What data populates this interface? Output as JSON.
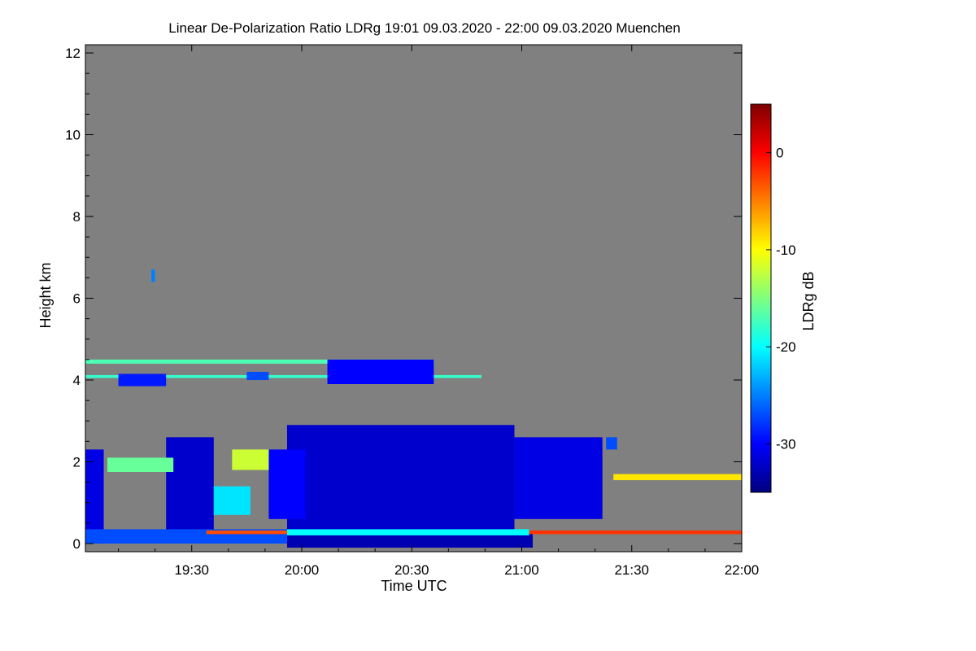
{
  "chart_data": {
    "type": "heatmap",
    "title": "Linear De-Polarization Ratio LDRg   19:01 09.03.2020 - 22:00 09.03.2020 Muenchen",
    "xlabel": "Time UTC",
    "ylabel": "Height km",
    "colorbar_label": "LDRg dB",
    "x_range_minutes": [
      1141,
      1320
    ],
    "y_range_km": [
      -0.2,
      12.2
    ],
    "colorbar_range_db": [
      -35,
      5
    ],
    "x_ticks": [
      {
        "label": "19:30",
        "minutes": 1170
      },
      {
        "label": "20:00",
        "minutes": 1200
      },
      {
        "label": "20:30",
        "minutes": 1230
      },
      {
        "label": "21:00",
        "minutes": 1260
      },
      {
        "label": "21:30",
        "minutes": 1290
      },
      {
        "label": "22:00",
        "minutes": 1320
      }
    ],
    "y_ticks": [
      {
        "label": "0",
        "km": 0
      },
      {
        "label": "2",
        "km": 2
      },
      {
        "label": "4",
        "km": 4
      },
      {
        "label": "6",
        "km": 6
      },
      {
        "label": "8",
        "km": 8
      },
      {
        "label": "10",
        "km": 10
      },
      {
        "label": "12",
        "km": 12
      }
    ],
    "colorbar_ticks": [
      {
        "label": "0",
        "db": 0
      },
      {
        "label": "-10",
        "db": -10
      },
      {
        "label": "-20",
        "db": -20
      },
      {
        "label": "-30",
        "db": -30
      }
    ],
    "background_color": "#808080",
    "features": [
      {
        "name": "main-cloud",
        "t0": 1196,
        "t1": 1258,
        "h0": 0.3,
        "h1": 2.9,
        "db": -32
      },
      {
        "name": "main-cloud-tail",
        "t0": 1258,
        "t1": 1282,
        "h0": 0.6,
        "h1": 2.6,
        "db": -31
      },
      {
        "name": "early-cloud-a",
        "t0": 1141,
        "t1": 1146,
        "h0": 0.0,
        "h1": 2.3,
        "db": -31
      },
      {
        "name": "early-cloud-b",
        "t0": 1163,
        "t1": 1176,
        "h0": 0.2,
        "h1": 2.6,
        "db": -32
      },
      {
        "name": "mid-cloud",
        "t0": 1191,
        "t1": 1201,
        "h0": 0.6,
        "h1": 2.3,
        "db": -30
      },
      {
        "name": "small-patch-right",
        "t0": 1283,
        "t1": 1286,
        "h0": 2.3,
        "h1": 2.6,
        "db": -27
      },
      {
        "name": "near-ground-left",
        "t0": 1141,
        "t1": 1196,
        "h0": 0.0,
        "h1": 0.35,
        "db": -27
      },
      {
        "name": "near-ground-main",
        "t0": 1196,
        "t1": 1263,
        "h0": -0.1,
        "h1": 0.3,
        "db": -33
      },
      {
        "name": "bright-base-band",
        "t0": 1196,
        "t1": 1262,
        "h0": 0.2,
        "h1": 0.35,
        "db": -20
      },
      {
        "name": "surface-layer-left",
        "t0": 1174,
        "t1": 1196,
        "h0": 0.23,
        "h1": 0.32,
        "db": -3
      },
      {
        "name": "surface-layer-right",
        "t0": 1262,
        "t1": 1320,
        "h0": 0.23,
        "h1": 0.32,
        "db": -2
      },
      {
        "name": "aerosol-layer-upper",
        "t0": 1141,
        "t1": 1236,
        "h0": 4.4,
        "h1": 4.5,
        "db": -17
      },
      {
        "name": "aerosol-layer-lower",
        "t0": 1141,
        "t1": 1249,
        "h0": 4.05,
        "h1": 4.12,
        "db": -18
      },
      {
        "name": "ice-streaks",
        "t0": 1207,
        "t1": 1236,
        "h0": 3.9,
        "h1": 4.5,
        "db": -30
      },
      {
        "name": "ice-patch-left",
        "t0": 1150,
        "t1": 1163,
        "h0": 3.85,
        "h1": 4.15,
        "db": -29
      },
      {
        "name": "ice-patch-mid",
        "t0": 1185,
        "t1": 1191,
        "h0": 4.0,
        "h1": 4.2,
        "db": -27
      },
      {
        "name": "lower-layer-left",
        "t0": 1147,
        "t1": 1165,
        "h0": 1.75,
        "h1": 2.1,
        "db": -16
      },
      {
        "name": "lower-layer-mid",
        "t0": 1181,
        "t1": 1191,
        "h0": 1.8,
        "h1": 2.3,
        "db": -12
      },
      {
        "name": "lower-layer-right",
        "t0": 1285,
        "t1": 1320,
        "h0": 1.55,
        "h1": 1.7,
        "db": -9
      },
      {
        "name": "speckle-mid",
        "t0": 1176,
        "t1": 1186,
        "h0": 0.7,
        "h1": 1.4,
        "db": -21
      },
      {
        "name": "high-speck",
        "t0": 1159,
        "t1": 1160,
        "h0": 6.4,
        "h1": 6.7,
        "db": -25
      }
    ]
  }
}
